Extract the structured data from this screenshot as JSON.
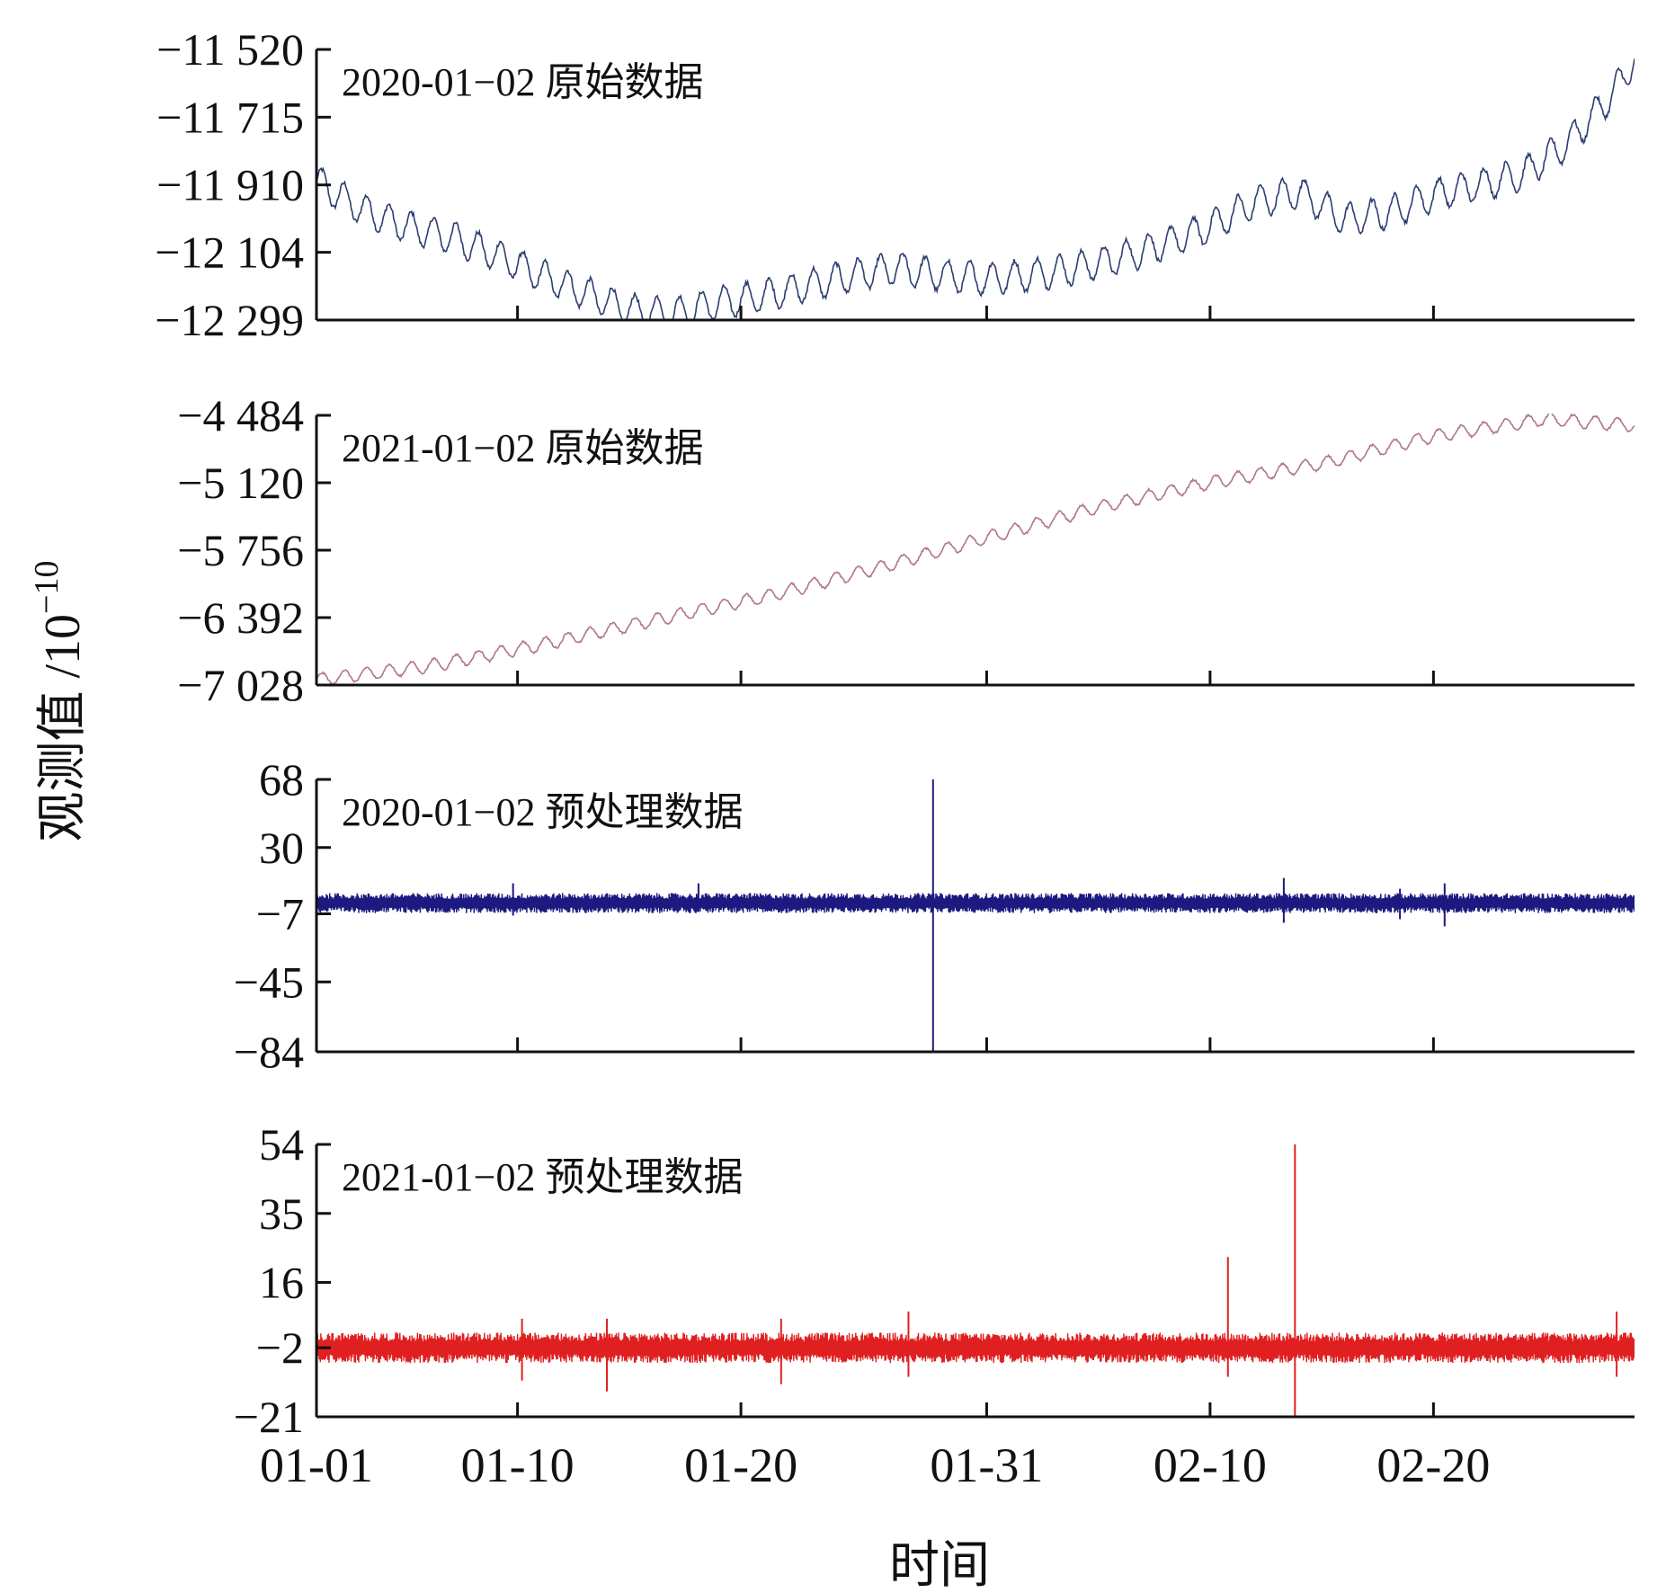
{
  "chart_data": {
    "type": "line",
    "ylabel": "观测值 /10",
    "ylabel_exponent": "−10",
    "xlabel": "时间",
    "x_ticks": [
      "01-01",
      "01-10",
      "01-20",
      "01-31",
      "02-10",
      "02-20"
    ],
    "x_tick_days": [
      0,
      9,
      19,
      30,
      40,
      50
    ],
    "x_range_days": [
      0,
      59
    ],
    "grid": false,
    "panels": [
      {
        "title": "2020-01−02 原始数据",
        "color": "#2c3e70",
        "ylim": [
          -12299,
          -11520
        ],
        "y_ticks": [
          -11520,
          -11715,
          -11910,
          -12104,
          -12299
        ],
        "y_tick_labels": [
          "−11 520",
          "−11 715",
          "−11 910",
          "−12 104",
          "−12 299"
        ],
        "series": [
          {
            "x": [
              0,
              2,
              4,
              6,
              8,
              10,
              12,
              14,
              16,
              18,
              20,
              22,
              24,
              26,
              28,
              30,
              32,
              34,
              36,
              38,
              40,
              42,
              44,
              46,
              48,
              50,
              52,
              54,
              56,
              58,
              59
            ],
            "y": [
              -11900,
              -11980,
              -12030,
              -12060,
              -12110,
              -12170,
              -12220,
              -12270,
              -12280,
              -12250,
              -12230,
              -12200,
              -12170,
              -12150,
              -12170,
              -12180,
              -12170,
              -12150,
              -12120,
              -12080,
              -12030,
              -11960,
              -11930,
              -12010,
              -11990,
              -11940,
              -11910,
              -11880,
              -11790,
              -11650,
              -11550
            ],
            "oscillation_amplitude": 45
          }
        ]
      },
      {
        "title": "2021-01−02 原始数据",
        "color": "#b07880",
        "ylim": [
          -7028,
          -4484
        ],
        "y_ticks": [
          -4484,
          -5120,
          -5756,
          -6392,
          -7028
        ],
        "y_tick_labels": [
          "−4 484",
          "−5 120",
          "−5 756",
          "−6 392",
          "−7 028"
        ],
        "series": [
          {
            "x": [
              0,
              5,
              10,
              15,
              20,
              25,
              30,
              35,
              40,
              45,
              50,
              55,
              59
            ],
            "y": [
              -6980,
              -6850,
              -6650,
              -6420,
              -6200,
              -5930,
              -5640,
              -5350,
              -5120,
              -4940,
              -4680,
              -4520,
              -4580
            ],
            "oscillation_amplitude": 60
          }
        ]
      },
      {
        "title": "2020-01−02 预处理数据",
        "color": "#1c1a80",
        "ylim": [
          -84,
          68
        ],
        "y_ticks": [
          68,
          30,
          -7,
          -45,
          -84
        ],
        "y_tick_labels": [
          "68",
          "30",
          "−7",
          "−45",
          "−84"
        ],
        "series": [
          {
            "baseline": -1,
            "noise_amplitude": 4,
            "spikes": [
              {
                "x": 27.6,
                "top": 68,
                "bottom": -84
              },
              {
                "x": 43.3,
                "top": 13,
                "bottom": -12
              },
              {
                "x": 48.5,
                "top": 7,
                "bottom": -10
              },
              {
                "x": 50.5,
                "top": 10,
                "bottom": -14
              },
              {
                "x": 8.8,
                "top": 10,
                "bottom": -8
              },
              {
                "x": 17.1,
                "top": 10,
                "bottom": -6
              }
            ]
          }
        ]
      },
      {
        "title": "2021-01−02 预处理数据",
        "color": "#e02020",
        "ylim": [
          -21,
          54
        ],
        "y_ticks": [
          54,
          35,
          16,
          -2,
          -21
        ],
        "y_tick_labels": [
          "54",
          "35",
          "16",
          "−2",
          "−21"
        ],
        "series": [
          {
            "baseline": -2,
            "noise_amplitude": 3,
            "spikes": [
              {
                "x": 43.8,
                "top": 54,
                "bottom": -21
              },
              {
                "x": 40.8,
                "top": 23,
                "bottom": -10
              },
              {
                "x": 26.5,
                "top": 8,
                "bottom": -10
              },
              {
                "x": 13,
                "top": 6,
                "bottom": -14
              },
              {
                "x": 9.2,
                "top": 6,
                "bottom": -11
              },
              {
                "x": 20.8,
                "top": 6,
                "bottom": -12
              },
              {
                "x": 58.2,
                "top": 8,
                "bottom": -10
              }
            ]
          }
        ]
      }
    ]
  }
}
